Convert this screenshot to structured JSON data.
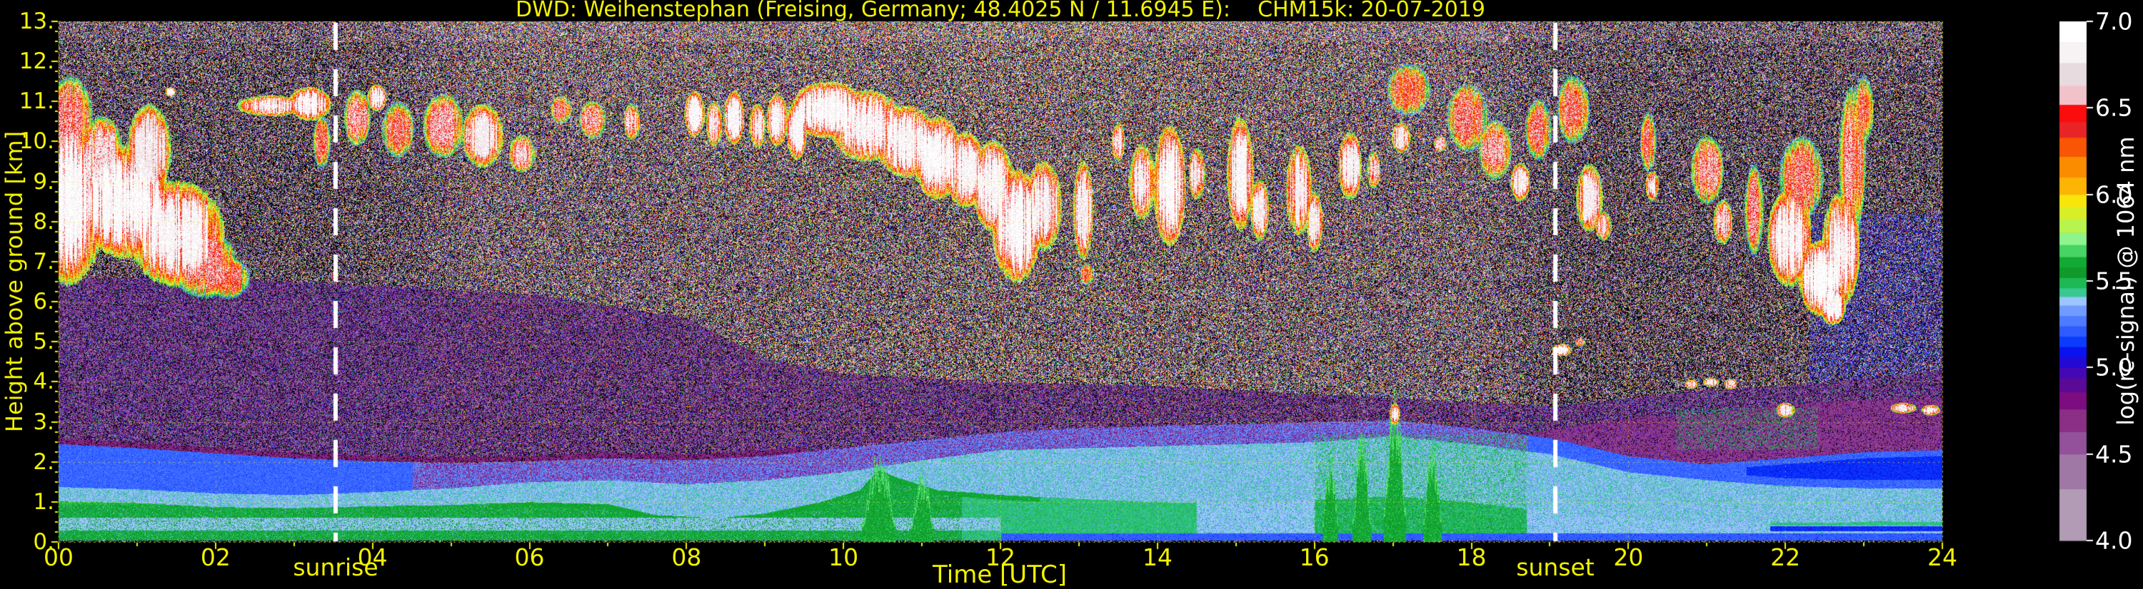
{
  "title": "DWD: Weihenstephan (Freising, Germany; 48.4025 N / 11.6945 E):    CHM15k: 20-07-2019",
  "axes": {
    "xlabel": "Time [UTC]",
    "ylabel": "Height above ground [km]",
    "x_ticks": [
      "00",
      "02",
      "04",
      "06",
      "08",
      "10",
      "12",
      "14",
      "16",
      "18",
      "20",
      "22",
      "24"
    ],
    "y_ticks": [
      "0.",
      "1.",
      "2.",
      "3.",
      "4.",
      "5.",
      "6.",
      "7.",
      "8.",
      "9.",
      "10.",
      "11.",
      "12.",
      "13."
    ],
    "sunrise_label": "sunrise",
    "sunset_label": "sunset",
    "grid_color": "#f8f800",
    "tick_color": "#f2f200"
  },
  "colorbar": {
    "label": "log(rc-signal) @ 1064 nm",
    "ticks": [
      "7.0",
      "6.5",
      "6.0",
      "5.5",
      "5.0",
      "4.5",
      "4.0"
    ],
    "segments": [
      [
        4.0,
        4.3,
        "#b29bb5"
      ],
      [
        4.3,
        4.5,
        "#a078a6"
      ],
      [
        4.5,
        4.63,
        "#93509b"
      ],
      [
        4.63,
        4.76,
        "#8a2e86"
      ],
      [
        4.76,
        4.86,
        "#7c0c80"
      ],
      [
        4.86,
        4.94,
        "#5a0a96"
      ],
      [
        4.94,
        5.0,
        "#4408b4"
      ],
      [
        5.0,
        5.06,
        "#2309d4"
      ],
      [
        5.06,
        5.12,
        "#0a13ee"
      ],
      [
        5.12,
        5.18,
        "#0b3bfc"
      ],
      [
        5.18,
        5.24,
        "#2e5bff"
      ],
      [
        5.24,
        5.3,
        "#4e7bff"
      ],
      [
        5.3,
        5.36,
        "#719cff"
      ],
      [
        5.36,
        5.41,
        "#9dc5fe"
      ],
      [
        5.41,
        5.46,
        "#38c892"
      ],
      [
        5.46,
        5.52,
        "#1db954"
      ],
      [
        5.52,
        5.58,
        "#0f9a2a"
      ],
      [
        5.58,
        5.64,
        "#12aa33"
      ],
      [
        5.64,
        5.71,
        "#46d465"
      ],
      [
        5.71,
        5.78,
        "#8ef58c"
      ],
      [
        5.78,
        5.86,
        "#b8f44e"
      ],
      [
        5.86,
        5.93,
        "#d8ef28"
      ],
      [
        5.93,
        6.0,
        "#f8e60a"
      ],
      [
        6.0,
        6.1,
        "#fcb405"
      ],
      [
        6.1,
        6.22,
        "#fb8c00"
      ],
      [
        6.22,
        6.33,
        "#f85504"
      ],
      [
        6.33,
        6.42,
        "#e92427"
      ],
      [
        6.42,
        6.52,
        "#fb0d0d"
      ],
      [
        6.52,
        6.63,
        "#f2c2cb"
      ],
      [
        6.63,
        6.76,
        "#e8dbe0"
      ],
      [
        6.76,
        6.88,
        "#f7f2f3"
      ],
      [
        6.88,
        7.0,
        "#ffffff"
      ]
    ]
  },
  "chart_data": {
    "type": "heatmap",
    "title": "DWD: Weihenstephan (Freising, Germany; 48.4025 N / 11.6945 E):    CHM15k: 20-07-2019",
    "xlabel": "Time [UTC]",
    "ylabel": "Height above ground [km]",
    "x_range_hours": [
      0,
      24
    ],
    "y_range_km": [
      0,
      13
    ],
    "value_range": [
      4.0,
      7.0
    ],
    "value_label": "log(rc-signal) @ 1064 nm",
    "grid": "dotted yellow, x every 2 h, y every 1 km",
    "sunrise_utc": 3.53,
    "sunset_utc": 19.07,
    "layers": {
      "green_top_km": [
        [
          0,
          1.02
        ],
        [
          1,
          0.98
        ],
        [
          2,
          0.88
        ],
        [
          3,
          0.85
        ],
        [
          4,
          0.9
        ],
        [
          5,
          0.93
        ],
        [
          6,
          1.0
        ],
        [
          7,
          0.95
        ],
        [
          7.6,
          0.68
        ],
        [
          8.4,
          0.6
        ],
        [
          9,
          0.72
        ],
        [
          9.7,
          1.0
        ],
        [
          10.2,
          1.3
        ],
        [
          10.45,
          1.8
        ],
        [
          10.7,
          1.6
        ],
        [
          11.2,
          1.3
        ],
        [
          12,
          1.18
        ],
        [
          13,
          1.08
        ],
        [
          14,
          1.0
        ],
        [
          15,
          0.98
        ],
        [
          16,
          1.05
        ],
        [
          17,
          1.15
        ],
        [
          18,
          1.0
        ],
        [
          18.8,
          0.8
        ],
        [
          19.5,
          0.65
        ],
        [
          20.5,
          0.55
        ],
        [
          21.5,
          0.5
        ],
        [
          22.5,
          0.48
        ],
        [
          23.2,
          0.52
        ],
        [
          24,
          0.5
        ]
      ],
      "paleblue_top_km": [
        [
          0,
          1.38
        ],
        [
          1,
          1.32
        ],
        [
          2,
          1.22
        ],
        [
          3,
          1.18
        ],
        [
          4,
          1.25
        ],
        [
          5,
          1.35
        ],
        [
          6,
          1.5
        ],
        [
          7,
          1.55
        ],
        [
          8,
          1.45
        ],
        [
          9,
          1.55
        ],
        [
          10,
          1.75
        ],
        [
          11,
          2.05
        ],
        [
          12,
          2.3
        ],
        [
          13,
          2.35
        ],
        [
          14,
          2.4
        ],
        [
          15,
          2.45
        ],
        [
          16,
          2.5
        ],
        [
          17,
          2.65
        ],
        [
          18,
          2.45
        ],
        [
          19,
          2.2
        ],
        [
          20,
          1.75
        ],
        [
          21,
          1.55
        ],
        [
          22,
          1.4
        ],
        [
          23,
          1.35
        ],
        [
          24,
          1.35
        ]
      ],
      "blue_top_km": [
        [
          0,
          2.45
        ],
        [
          1,
          2.35
        ],
        [
          2,
          2.22
        ],
        [
          3,
          2.1
        ],
        [
          4,
          2.02
        ],
        [
          5,
          1.98
        ],
        [
          6,
          2.02
        ],
        [
          7,
          2.1
        ],
        [
          8,
          2.05
        ],
        [
          9,
          2.15
        ],
        [
          10,
          2.35
        ],
        [
          11,
          2.55
        ],
        [
          12,
          2.75
        ],
        [
          13,
          2.85
        ],
        [
          14,
          2.9
        ],
        [
          15,
          2.95
        ],
        [
          16,
          3.0
        ],
        [
          17,
          3.05
        ],
        [
          18,
          2.85
        ],
        [
          19,
          2.6
        ],
        [
          20,
          2.15
        ],
        [
          21,
          1.95
        ],
        [
          22,
          2.1
        ],
        [
          23,
          2.25
        ],
        [
          24,
          2.3
        ]
      ],
      "purple_top_km": [
        [
          0,
          6.6
        ],
        [
          2,
          6.6
        ],
        [
          4,
          6.4
        ],
        [
          6,
          6.2
        ],
        [
          8,
          5.6
        ],
        [
          9,
          4.6
        ],
        [
          10,
          4.2
        ],
        [
          12,
          4.0
        ],
        [
          14,
          3.9
        ],
        [
          16,
          3.7
        ],
        [
          18,
          3.5
        ],
        [
          19,
          3.4
        ],
        [
          20,
          3.6
        ],
        [
          21,
          3.8
        ],
        [
          22,
          3.9
        ],
        [
          23,
          4.1
        ],
        [
          24,
          4.3
        ]
      ],
      "maroon_top_km": [
        [
          18.5,
          2.6
        ],
        [
          19,
          2.8
        ],
        [
          20,
          3.1
        ],
        [
          21,
          3.2
        ],
        [
          22,
          3.45
        ],
        [
          23,
          3.55
        ],
        [
          24,
          3.6
        ]
      ]
    },
    "green_plumes": [
      [
        10.45,
        0.22,
        1.95
      ],
      [
        11.0,
        0.15,
        1.65
      ],
      [
        16.2,
        0.1,
        2.0
      ],
      [
        16.6,
        0.12,
        2.3
      ],
      [
        17.02,
        0.14,
        3.35
      ],
      [
        17.5,
        0.12,
        2.2
      ]
    ],
    "clouds": [
      [
        0.12,
        8.5,
        0.5,
        2.2,
        6.95
      ],
      [
        0.15,
        10.6,
        0.3,
        1.1,
        6.55
      ],
      [
        0.55,
        9.6,
        0.3,
        1.1,
        6.7
      ],
      [
        0.85,
        8.5,
        0.6,
        1.5,
        6.95
      ],
      [
        1.15,
        9.8,
        0.3,
        1.2,
        6.8
      ],
      [
        1.5,
        7.7,
        0.65,
        1.4,
        6.9
      ],
      [
        1.85,
        6.95,
        0.45,
        0.9,
        6.55
      ],
      [
        2.15,
        6.6,
        0.3,
        0.55,
        6.45
      ],
      [
        1.42,
        11.25,
        0.07,
        0.12,
        6.9
      ],
      [
        2.7,
        10.9,
        0.45,
        0.28,
        6.85
      ],
      [
        3.2,
        10.95,
        0.28,
        0.45,
        6.9
      ],
      [
        3.35,
        10.0,
        0.12,
        0.7,
        6.45
      ],
      [
        3.8,
        10.6,
        0.18,
        0.75,
        6.6
      ],
      [
        4.05,
        11.1,
        0.13,
        0.35,
        6.9
      ],
      [
        4.32,
        10.3,
        0.22,
        0.75,
        6.5
      ],
      [
        4.9,
        10.4,
        0.28,
        0.85,
        6.6
      ],
      [
        5.4,
        10.15,
        0.28,
        0.85,
        6.8
      ],
      [
        5.9,
        9.7,
        0.18,
        0.5,
        6.7
      ],
      [
        6.4,
        10.8,
        0.14,
        0.38,
        6.55
      ],
      [
        6.8,
        10.55,
        0.18,
        0.5,
        6.6
      ],
      [
        7.3,
        10.5,
        0.11,
        0.5,
        6.7
      ],
      [
        8.1,
        10.7,
        0.14,
        0.6,
        6.9
      ],
      [
        8.35,
        10.45,
        0.11,
        0.6,
        6.8
      ],
      [
        8.6,
        10.6,
        0.14,
        0.7,
        6.9
      ],
      [
        8.9,
        10.4,
        0.11,
        0.6,
        6.8
      ],
      [
        9.15,
        10.55,
        0.14,
        0.7,
        6.9
      ],
      [
        9.4,
        10.3,
        0.14,
        0.8,
        6.9
      ],
      [
        9.8,
        10.8,
        0.5,
        0.75,
        6.95
      ],
      [
        10.3,
        10.4,
        0.5,
        0.95,
        6.9
      ],
      [
        10.8,
        10.0,
        0.4,
        0.95,
        6.9
      ],
      [
        11.2,
        9.6,
        0.33,
        1.1,
        6.95
      ],
      [
        11.55,
        9.3,
        0.28,
        1.0,
        6.9
      ],
      [
        11.9,
        8.9,
        0.28,
        1.2,
        6.9
      ],
      [
        12.2,
        7.9,
        0.33,
        1.5,
        6.95
      ],
      [
        12.55,
        8.4,
        0.24,
        1.2,
        6.85
      ],
      [
        13.05,
        8.3,
        0.14,
        1.3,
        6.8
      ],
      [
        13.1,
        6.7,
        0.1,
        0.3,
        6.35
      ],
      [
        13.5,
        10.0,
        0.09,
        0.5,
        6.8
      ],
      [
        13.8,
        9.0,
        0.18,
        1.0,
        6.85
      ],
      [
        14.15,
        8.9,
        0.22,
        1.6,
        6.95
      ],
      [
        14.5,
        9.2,
        0.11,
        0.7,
        6.8
      ],
      [
        15.05,
        9.2,
        0.18,
        1.5,
        6.9
      ],
      [
        15.3,
        8.3,
        0.13,
        0.8,
        6.8
      ],
      [
        15.8,
        8.8,
        0.18,
        1.2,
        6.85
      ],
      [
        16.0,
        8.0,
        0.11,
        0.8,
        6.8
      ],
      [
        16.45,
        9.4,
        0.16,
        0.9,
        6.85
      ],
      [
        16.75,
        9.3,
        0.09,
        0.5,
        6.7
      ],
      [
        17.1,
        10.1,
        0.13,
        0.4,
        6.8
      ],
      [
        17.2,
        11.3,
        0.3,
        0.7,
        6.4
      ],
      [
        17.6,
        9.95,
        0.09,
        0.2,
        6.7
      ],
      [
        17.95,
        10.6,
        0.28,
        0.9,
        6.5
      ],
      [
        18.3,
        9.8,
        0.22,
        0.8,
        6.6
      ],
      [
        18.62,
        9.0,
        0.13,
        0.5,
        6.8
      ],
      [
        18.85,
        10.3,
        0.18,
        0.8,
        6.5
      ],
      [
        19.3,
        10.8,
        0.22,
        0.9,
        6.5
      ],
      [
        19.5,
        8.6,
        0.18,
        0.9,
        6.8
      ],
      [
        19.68,
        7.9,
        0.11,
        0.4,
        6.7
      ],
      [
        20.25,
        10.0,
        0.11,
        0.8,
        6.5
      ],
      [
        20.3,
        8.9,
        0.09,
        0.4,
        6.8
      ],
      [
        21.0,
        9.3,
        0.22,
        0.9,
        6.6
      ],
      [
        21.2,
        8.0,
        0.13,
        0.6,
        6.7
      ],
      [
        21.6,
        8.3,
        0.13,
        1.2,
        6.55
      ],
      [
        19.15,
        4.8,
        0.13,
        0.16,
        6.9
      ],
      [
        19.38,
        5.0,
        0.07,
        0.1,
        6.6
      ],
      [
        20.8,
        3.95,
        0.09,
        0.12,
        6.8
      ],
      [
        21.05,
        4.0,
        0.11,
        0.12,
        6.8
      ],
      [
        21.3,
        3.95,
        0.09,
        0.14,
        6.7
      ],
      [
        17.02,
        3.2,
        0.07,
        0.3,
        6.9
      ],
      [
        22.05,
        7.6,
        0.3,
        1.3,
        6.9
      ],
      [
        22.2,
        9.1,
        0.3,
        1.1,
        6.5
      ],
      [
        22.45,
        6.6,
        0.3,
        1.0,
        6.97
      ],
      [
        22.7,
        7.3,
        0.26,
        1.5,
        6.9
      ],
      [
        22.85,
        9.5,
        0.18,
        2.0,
        6.6
      ],
      [
        23.0,
        10.8,
        0.13,
        0.9,
        6.5
      ],
      [
        22.6,
        5.9,
        0.18,
        0.5,
        6.9
      ],
      [
        22.0,
        3.3,
        0.13,
        0.2,
        6.8
      ],
      [
        23.5,
        3.35,
        0.18,
        0.14,
        6.8
      ],
      [
        23.85,
        3.3,
        0.13,
        0.14,
        6.85
      ]
    ]
  }
}
